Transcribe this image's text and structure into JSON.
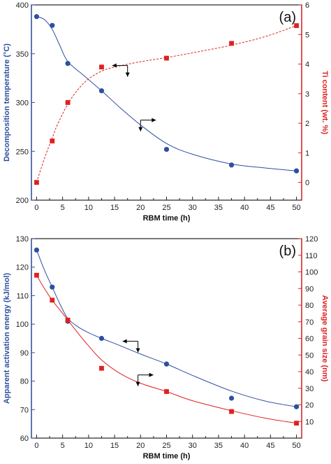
{
  "colors": {
    "blue": "#2e4fa0",
    "red": "#e02020",
    "axis": "#222222"
  },
  "chart_data": [
    {
      "type": "scatter",
      "panel_label": "(a)",
      "xlabel": "RBM time (h)",
      "ylabel_left": "Decomposition temperature (°C)",
      "ylabel_right": "Ti content (wt. %)",
      "xlim": [
        -1,
        51
      ],
      "x_ticks": [
        0,
        5,
        10,
        15,
        20,
        25,
        30,
        35,
        40,
        45,
        50
      ],
      "ylim_left": [
        200,
        400
      ],
      "y_ticks_left": [
        200,
        250,
        300,
        350,
        400
      ],
      "ylim_right": [
        -0.6,
        6
      ],
      "y_ticks_right": [
        0,
        1,
        2,
        3,
        4,
        5,
        6
      ],
      "series": [
        {
          "name": "Decomposition temperature",
          "axis": "left",
          "marker": "circle",
          "color": "#2e4fa0",
          "fit_line": "solid",
          "x": [
            0,
            3,
            6,
            12.5,
            25,
            37.5,
            50
          ],
          "y": [
            388,
            379,
            340,
            312,
            252,
            236,
            230
          ]
        },
        {
          "name": "Ti content",
          "axis": "right",
          "marker": "square",
          "color": "#e02020",
          "fit_line": "dashed",
          "x": [
            0,
            3,
            6,
            12.5,
            25,
            37.5,
            50
          ],
          "y": [
            0.0,
            1.4,
            2.7,
            3.9,
            4.2,
            4.7,
            5.3
          ]
        }
      ],
      "curves": [
        {
          "series": 0,
          "x": [
            0,
            1.5,
            3,
            4.5,
            6,
            9,
            12.5,
            16,
            20,
            25,
            30,
            37.5,
            44,
            50
          ],
          "y": [
            388,
            385,
            375,
            358,
            342,
            328,
            312,
            295,
            277,
            258,
            247,
            237,
            233,
            230
          ]
        },
        {
          "series": 1,
          "x": [
            0,
            1,
            2,
            3,
            4,
            6,
            8,
            10,
            12.5,
            15,
            20,
            25,
            30,
            37.5,
            44,
            50
          ],
          "y": [
            0.0,
            0.55,
            1.05,
            1.5,
            1.95,
            2.65,
            3.15,
            3.5,
            3.76,
            3.9,
            4.08,
            4.22,
            4.38,
            4.64,
            4.93,
            5.3
          ]
        }
      ],
      "arrows": [
        {
          "points": "left",
          "x": 17.5,
          "y_right": 3.95
        },
        {
          "points": "right",
          "x": 20,
          "y_left": 282
        }
      ]
    },
    {
      "type": "scatter",
      "panel_label": "(b)",
      "xlabel": "RBM time (h)",
      "ylabel_left": "Apparent activation energy (kJ/mol)",
      "ylabel_right": "Average grain size (nm)",
      "xlim": [
        -1,
        51
      ],
      "x_ticks": [
        0,
        5,
        10,
        15,
        20,
        25,
        30,
        35,
        40,
        45,
        50
      ],
      "ylim_left": [
        60,
        130
      ],
      "y_ticks_left": [
        60,
        70,
        80,
        90,
        100,
        110,
        120,
        130
      ],
      "ylim_right": [
        0,
        120
      ],
      "y_ticks_right": [
        10,
        20,
        30,
        40,
        50,
        60,
        70,
        80,
        90,
        100,
        110,
        120
      ],
      "series": [
        {
          "name": "Apparent activation energy",
          "axis": "left",
          "marker": "circle",
          "color": "#2e4fa0",
          "fit_line": "solid",
          "x": [
            0,
            3,
            6,
            12.5,
            25,
            37.5,
            50
          ],
          "y": [
            126,
            113,
            101,
            95,
            86,
            74,
            71
          ]
        },
        {
          "name": "Average grain size",
          "axis": "right",
          "marker": "square",
          "color": "#e02020",
          "fit_line": "solid",
          "x": [
            0,
            3,
            6,
            12.5,
            25,
            37.5,
            50
          ],
          "y": [
            98,
            83,
            71,
            42,
            28,
            16,
            9
          ]
        }
      ],
      "curves": [
        {
          "series": 0,
          "x": [
            0,
            1.5,
            3,
            4.5,
            6,
            8,
            10,
            12.5,
            16,
            20,
            25,
            30,
            37.5,
            44,
            50
          ],
          "y": [
            126,
            119,
            113,
            107,
            102,
            99,
            97,
            95,
            92.5,
            89.5,
            86,
            82,
            76.5,
            73,
            71
          ]
        },
        {
          "series": 1,
          "x": [
            0,
            1.5,
            3,
            4.5,
            6,
            8,
            10,
            12.5,
            16,
            20,
            25,
            30,
            37.5,
            44,
            50
          ],
          "y": [
            98,
            90,
            83,
            77,
            71,
            63,
            55.5,
            47,
            39,
            33,
            28,
            22.5,
            16.5,
            12,
            9
          ]
        }
      ],
      "arrows": [
        {
          "points": "left",
          "x": 19.5,
          "y_left": 94
        },
        {
          "points": "right",
          "x": 19.5,
          "y_right": 38
        }
      ]
    }
  ]
}
